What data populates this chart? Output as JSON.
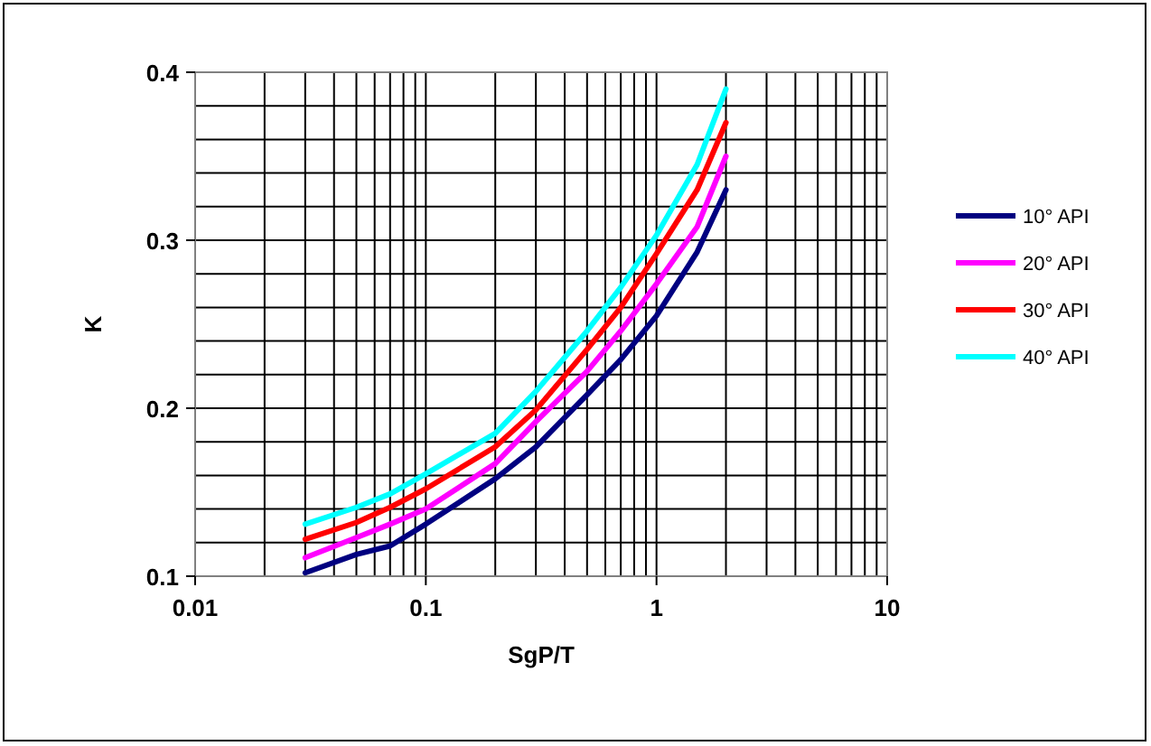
{
  "chart_data": {
    "type": "line",
    "xlabel": "SgP/T",
    "ylabel": "K",
    "log": "x",
    "x": [
      0.03,
      0.05,
      0.07,
      0.1,
      0.2,
      0.3,
      0.5,
      0.7,
      1,
      1.5,
      2
    ],
    "series": [
      {
        "name": "10° API",
        "color": "#000080",
        "values": [
          0.102,
          0.113,
          0.118,
          0.131,
          0.158,
          0.177,
          0.208,
          0.229,
          0.255,
          0.293,
          0.33
        ]
      },
      {
        "name": "20° API",
        "color": "#ff00ff",
        "values": [
          0.111,
          0.123,
          0.131,
          0.14,
          0.167,
          0.192,
          0.222,
          0.246,
          0.274,
          0.308,
          0.35
        ]
      },
      {
        "name": "30° API",
        "color": "#ff0000",
        "values": [
          0.122,
          0.132,
          0.141,
          0.152,
          0.177,
          0.199,
          0.235,
          0.26,
          0.292,
          0.33,
          0.37
        ]
      },
      {
        "name": "40° API",
        "color": "#00ffff",
        "values": [
          0.131,
          0.141,
          0.149,
          0.161,
          0.185,
          0.21,
          0.246,
          0.272,
          0.303,
          0.345,
          0.39
        ]
      }
    ],
    "xlim": [
      0.01,
      10
    ],
    "xticks": [
      0.01,
      {
        "value": 0.02,
        "label": null
      },
      {
        "value": 0.03,
        "label": null
      },
      {
        "value": 0.04,
        "label": null
      },
      {
        "value": 0.05,
        "label": null
      },
      {
        "value": 0.06,
        "label": null
      },
      {
        "value": 0.07,
        "label": null
      },
      {
        "value": 0.08,
        "label": null
      },
      {
        "value": 0.09,
        "label": null
      },
      0.1,
      {
        "value": 0.2,
        "label": null
      },
      {
        "value": 0.3,
        "label": null
      },
      {
        "value": 0.4,
        "label": null
      },
      {
        "value": 0.5,
        "label": null
      },
      {
        "value": 0.6,
        "label": null
      },
      {
        "value": 0.7,
        "label": null
      },
      {
        "value": 0.8,
        "label": null
      },
      {
        "value": 0.9,
        "label": null
      },
      1,
      {
        "value": 2,
        "label": null
      },
      {
        "value": 3,
        "label": null
      },
      {
        "value": 4,
        "label": null
      },
      {
        "value": 5,
        "label": null
      },
      {
        "value": 6,
        "label": null
      },
      {
        "value": 7,
        "label": null
      },
      {
        "value": 8,
        "label": null
      },
      {
        "value": 9,
        "label": null
      },
      10
    ],
    "ylim": [
      0.1,
      0.4
    ],
    "yticks": [
      0.1,
      {
        "value": 0.12,
        "label": null
      },
      {
        "value": 0.14,
        "label": null
      },
      {
        "value": 0.16,
        "label": null
      },
      {
        "value": 0.18,
        "label": null
      },
      0.2,
      {
        "value": 0.22,
        "label": null
      },
      {
        "value": 0.24,
        "label": null
      },
      {
        "value": 0.26,
        "label": null
      },
      {
        "value": 0.28,
        "label": null
      },
      0.3,
      {
        "value": 0.32,
        "label": null
      },
      {
        "value": 0.34,
        "label": null
      },
      {
        "value": 0.36,
        "label": null
      },
      {
        "value": 0.38,
        "label": null
      },
      0.4
    ],
    "grid": true,
    "legend": "right",
    "marker": "none",
    "line_style": "solid"
  }
}
